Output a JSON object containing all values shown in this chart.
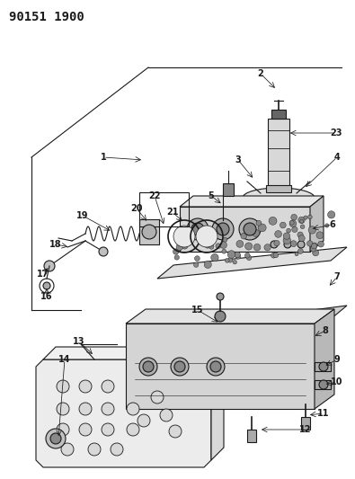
{
  "title": "90151 1900",
  "bg_color": "#ffffff",
  "line_color": "#1a1a1a",
  "figsize": [
    3.95,
    5.33
  ],
  "dpi": 100,
  "title_fontsize": 10,
  "label_fontsize": 7
}
